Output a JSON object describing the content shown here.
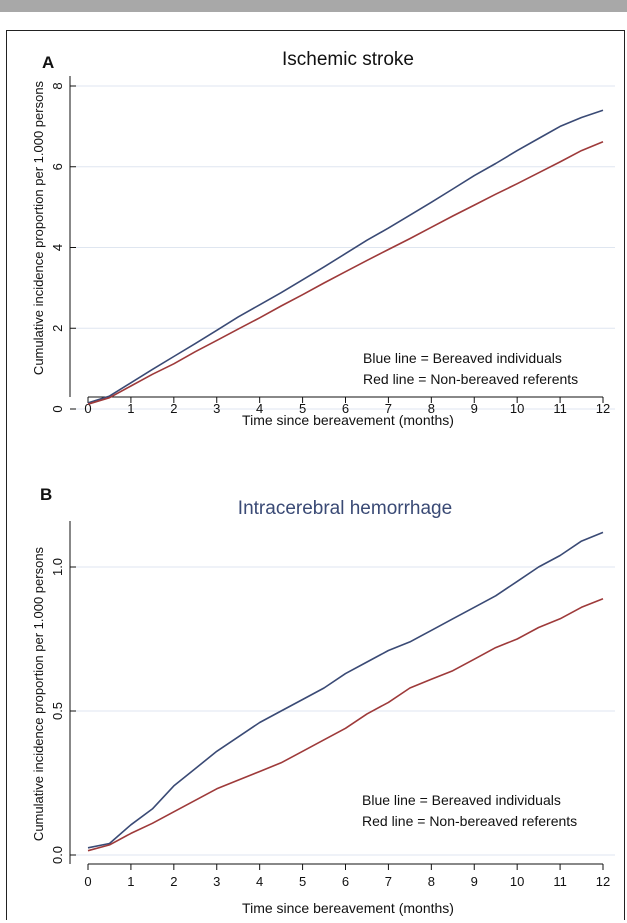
{
  "chart_data": [
    {
      "type": "line",
      "panel_label": "A",
      "title": "Ischemic stroke",
      "xlabel": "Time since bereavement (months)",
      "ylabel": "Cumulative incidence proportion per 1.000 persons",
      "x_ticks": [
        "0",
        "1",
        "2",
        "3",
        "4",
        "5",
        "6",
        "7",
        "8",
        "9",
        "10",
        "11",
        "12"
      ],
      "y_ticks": [
        "0",
        "2",
        "4",
        "6",
        "8"
      ],
      "xlim": [
        0,
        12
      ],
      "ylim": [
        0,
        8
      ],
      "grid": true,
      "annotations": [
        "Blue line = Bereaved individuals",
        "Red line = Non-bereaved referents"
      ],
      "series": [
        {
          "color": "#3a4a75",
          "x": [
            0,
            0.5,
            1,
            1.5,
            2,
            2.5,
            3,
            3.5,
            4,
            4.5,
            5,
            5.5,
            6,
            6.5,
            7,
            7.5,
            8,
            8.5,
            9,
            9.5,
            10,
            10.5,
            11,
            11.5,
            12
          ],
          "y": [
            0.15,
            0.32,
            0.65,
            0.98,
            1.3,
            1.62,
            1.95,
            2.28,
            2.58,
            2.88,
            3.2,
            3.52,
            3.85,
            4.18,
            4.48,
            4.8,
            5.12,
            5.45,
            5.78,
            6.08,
            6.4,
            6.7,
            7.0,
            7.22,
            7.4
          ]
        },
        {
          "color": "#9e3a3a",
          "x": [
            0,
            0.5,
            1,
            1.5,
            2,
            2.5,
            3,
            3.5,
            4,
            4.5,
            5,
            5.5,
            6,
            6.5,
            7,
            7.5,
            8,
            8.5,
            9,
            9.5,
            10,
            10.5,
            11,
            11.5,
            12
          ],
          "y": [
            0.12,
            0.28,
            0.57,
            0.86,
            1.12,
            1.42,
            1.7,
            1.98,
            2.26,
            2.55,
            2.83,
            3.12,
            3.4,
            3.68,
            3.95,
            4.22,
            4.5,
            4.78,
            5.05,
            5.32,
            5.58,
            5.85,
            6.12,
            6.4,
            6.62
          ]
        }
      ]
    },
    {
      "type": "line",
      "panel_label": "B",
      "title": "Intracerebral hemorrhage",
      "xlabel": "Time since bereavement (months)",
      "ylabel": "Cumulative incidence proportion per 1.000 persons",
      "x_ticks": [
        "0",
        "1",
        "2",
        "3",
        "4",
        "5",
        "6",
        "7",
        "8",
        "9",
        "10",
        "11",
        "12"
      ],
      "y_ticks": [
        "0.0",
        "0.5",
        "1.0"
      ],
      "xlim": [
        0,
        12
      ],
      "ylim": [
        -0.03,
        1.15
      ],
      "grid": true,
      "annotations": [
        "Blue line = Bereaved individuals",
        "Red line = Non-bereaved referents"
      ],
      "series": [
        {
          "color": "#3a4a75",
          "x": [
            0,
            0.5,
            1,
            1.5,
            2,
            2.5,
            3,
            3.5,
            4,
            4.5,
            5,
            5.5,
            6,
            6.5,
            7,
            7.5,
            8,
            8.5,
            9,
            9.5,
            10,
            10.5,
            11,
            11.5,
            12
          ],
          "y": [
            0.025,
            0.04,
            0.105,
            0.16,
            0.24,
            0.3,
            0.36,
            0.41,
            0.46,
            0.5,
            0.54,
            0.58,
            0.63,
            0.67,
            0.71,
            0.74,
            0.78,
            0.82,
            0.86,
            0.9,
            0.95,
            1.0,
            1.04,
            1.09,
            1.12
          ]
        },
        {
          "color": "#9e3a3a",
          "x": [
            0,
            0.5,
            1,
            1.5,
            2,
            2.5,
            3,
            3.5,
            4,
            4.5,
            5,
            5.5,
            6,
            6.5,
            7,
            7.5,
            8,
            8.5,
            9,
            9.5,
            10,
            10.5,
            11,
            11.5,
            12
          ],
          "y": [
            0.015,
            0.035,
            0.075,
            0.11,
            0.15,
            0.19,
            0.23,
            0.26,
            0.29,
            0.32,
            0.36,
            0.4,
            0.44,
            0.49,
            0.53,
            0.58,
            0.61,
            0.64,
            0.68,
            0.72,
            0.75,
            0.79,
            0.82,
            0.86,
            0.89
          ]
        }
      ]
    }
  ]
}
